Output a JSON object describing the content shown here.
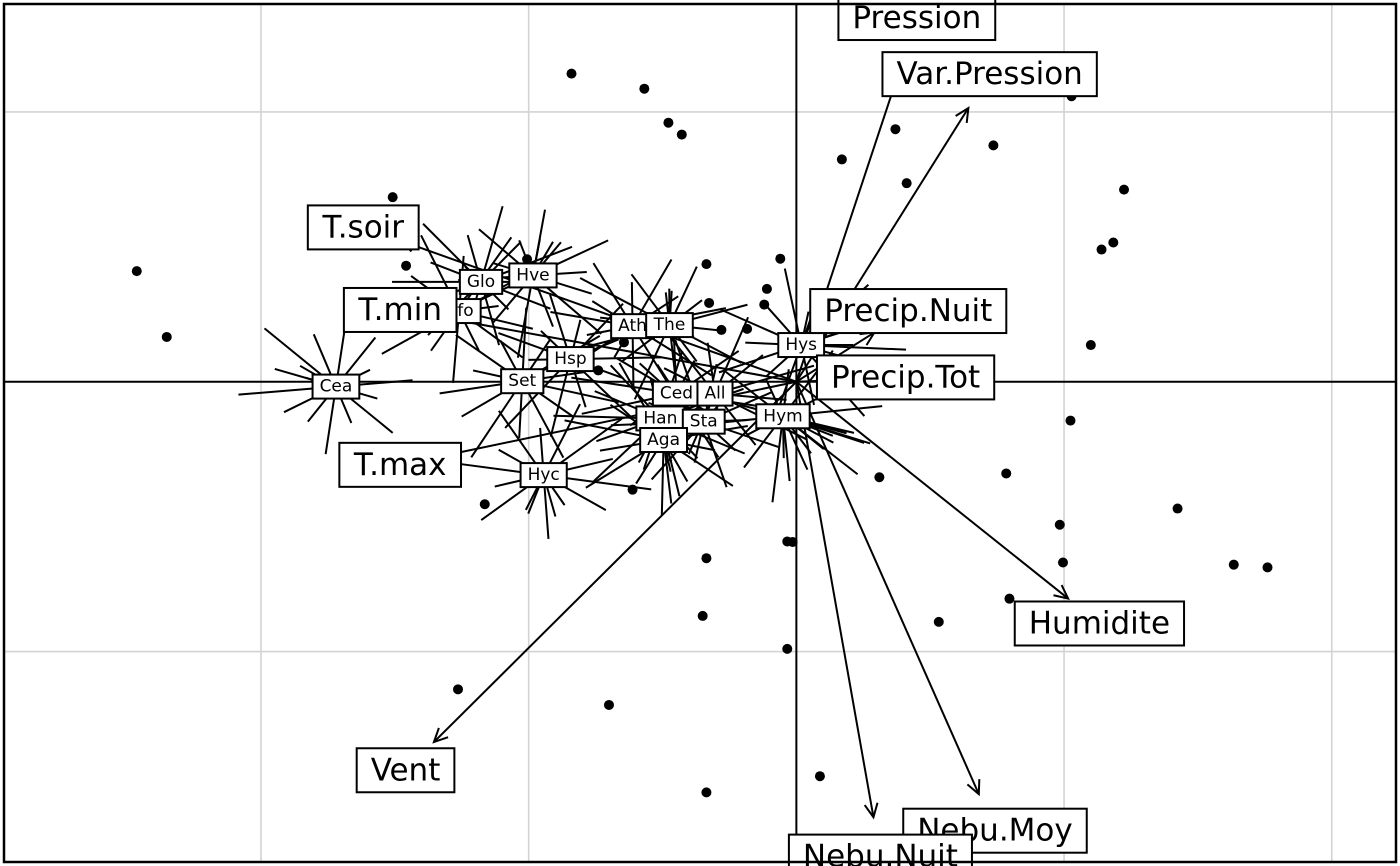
{
  "chart_data": {
    "type": "scatter",
    "subtype": "biplot",
    "title": "",
    "xlabel": "",
    "ylabel": "",
    "xlim": [
      -1.48,
      1.12
    ],
    "ylim": [
      -0.89,
      0.7
    ],
    "grid": true,
    "grid_x": [
      -1.0,
      -0.5,
      0.5,
      1.0
    ],
    "grid_y": [
      -0.5,
      0.5
    ],
    "origin": [
      0,
      0
    ],
    "points": [
      [
        -1.232,
        0.205
      ],
      [
        -1.176,
        0.083
      ],
      [
        -0.754,
        0.342
      ],
      [
        -0.729,
        0.215
      ],
      [
        -0.503,
        0.227
      ],
      [
        -0.42,
        0.571
      ],
      [
        -0.284,
        0.543
      ],
      [
        -0.239,
        0.48
      ],
      [
        -0.214,
        0.458
      ],
      [
        -0.168,
        0.218
      ],
      [
        -0.163,
        0.146
      ],
      [
        -0.14,
        0.096
      ],
      [
        -0.322,
        0.073
      ],
      [
        -0.37,
        0.021
      ],
      [
        -0.092,
        0.098
      ],
      [
        -0.06,
        0.143
      ],
      [
        -0.055,
        0.172
      ],
      [
        -0.03,
        0.228
      ],
      [
        0.085,
        0.412
      ],
      [
        0.185,
        0.468
      ],
      [
        0.206,
        0.368
      ],
      [
        0.368,
        0.438
      ],
      [
        0.493,
        0.538
      ],
      [
        0.514,
        0.529
      ],
      [
        0.612,
        0.356
      ],
      [
        0.57,
        0.245
      ],
      [
        0.592,
        0.258
      ],
      [
        0.55,
        0.068
      ],
      [
        0.137,
        0.026
      ],
      [
        0.512,
        -0.072
      ],
      [
        0.392,
        -0.17
      ],
      [
        0.492,
        -0.265
      ],
      [
        0.498,
        -0.335
      ],
      [
        0.712,
        -0.235
      ],
      [
        0.817,
        -0.339
      ],
      [
        0.88,
        -0.344
      ],
      [
        0.398,
        -0.402
      ],
      [
        0.266,
        -0.445
      ],
      [
        -0.017,
        -0.296
      ],
      [
        -0.168,
        -0.327
      ],
      [
        -0.306,
        -0.2
      ],
      [
        -0.582,
        -0.227
      ],
      [
        -0.632,
        -0.57
      ],
      [
        -0.35,
        -0.599
      ],
      [
        -0.175,
        -0.434
      ],
      [
        -0.017,
        -0.495
      ],
      [
        -0.168,
        -0.761
      ],
      [
        0.044,
        -0.731
      ],
      [
        0.155,
        -0.177
      ],
      [
        -0.007,
        -0.297
      ]
    ],
    "variables": [
      {
        "name": "Pression",
        "x": 0.225,
        "y": 0.674
      },
      {
        "name": "Var.Pression",
        "x": 0.361,
        "y": 0.57
      },
      {
        "name": "T.soir",
        "x": -0.809,
        "y": 0.286
      },
      {
        "name": "T.min",
        "x": -0.74,
        "y": 0.133
      },
      {
        "name": "Precip.Nuit",
        "x": 0.209,
        "y": 0.131
      },
      {
        "name": "Precip.Tot",
        "x": 0.204,
        "y": 0.008
      },
      {
        "name": "T.max",
        "x": -0.74,
        "y": -0.154
      },
      {
        "name": "Humidite",
        "x": 0.566,
        "y": -0.448
      },
      {
        "name": "Vent",
        "x": -0.73,
        "y": -0.72
      },
      {
        "name": "Nebu.Moy",
        "x": 0.371,
        "y": -0.832
      },
      {
        "name": "Nebu.Nuit",
        "x": 0.157,
        "y": -0.88
      }
    ],
    "species": [
      {
        "name": "Glo",
        "x": -0.589,
        "y": 0.185
      },
      {
        "name": "Hve",
        "x": -0.492,
        "y": 0.197
      },
      {
        "name": "Hfo",
        "x": -0.63,
        "y": 0.131
      },
      {
        "name": "Ath",
        "x": -0.306,
        "y": 0.103
      },
      {
        "name": "The",
        "x": -0.237,
        "y": 0.105
      },
      {
        "name": "Hys",
        "x": 0.009,
        "y": 0.068
      },
      {
        "name": "Hsp",
        "x": -0.422,
        "y": 0.042
      },
      {
        "name": "Cea",
        "x": -0.86,
        "y": -0.009
      },
      {
        "name": "Set",
        "x": -0.512,
        "y": 0.001
      },
      {
        "name": "Ced",
        "x": -0.224,
        "y": -0.022
      },
      {
        "name": "All",
        "x": -0.152,
        "y": -0.022
      },
      {
        "name": "Han",
        "x": -0.254,
        "y": -0.068
      },
      {
        "name": "Sta",
        "x": -0.173,
        "y": -0.074
      },
      {
        "name": "Hym",
        "x": -0.025,
        "y": -0.064
      },
      {
        "name": "Aga",
        "x": -0.248,
        "y": -0.108
      },
      {
        "name": "Hyc",
        "x": -0.472,
        "y": -0.173
      }
    ]
  }
}
